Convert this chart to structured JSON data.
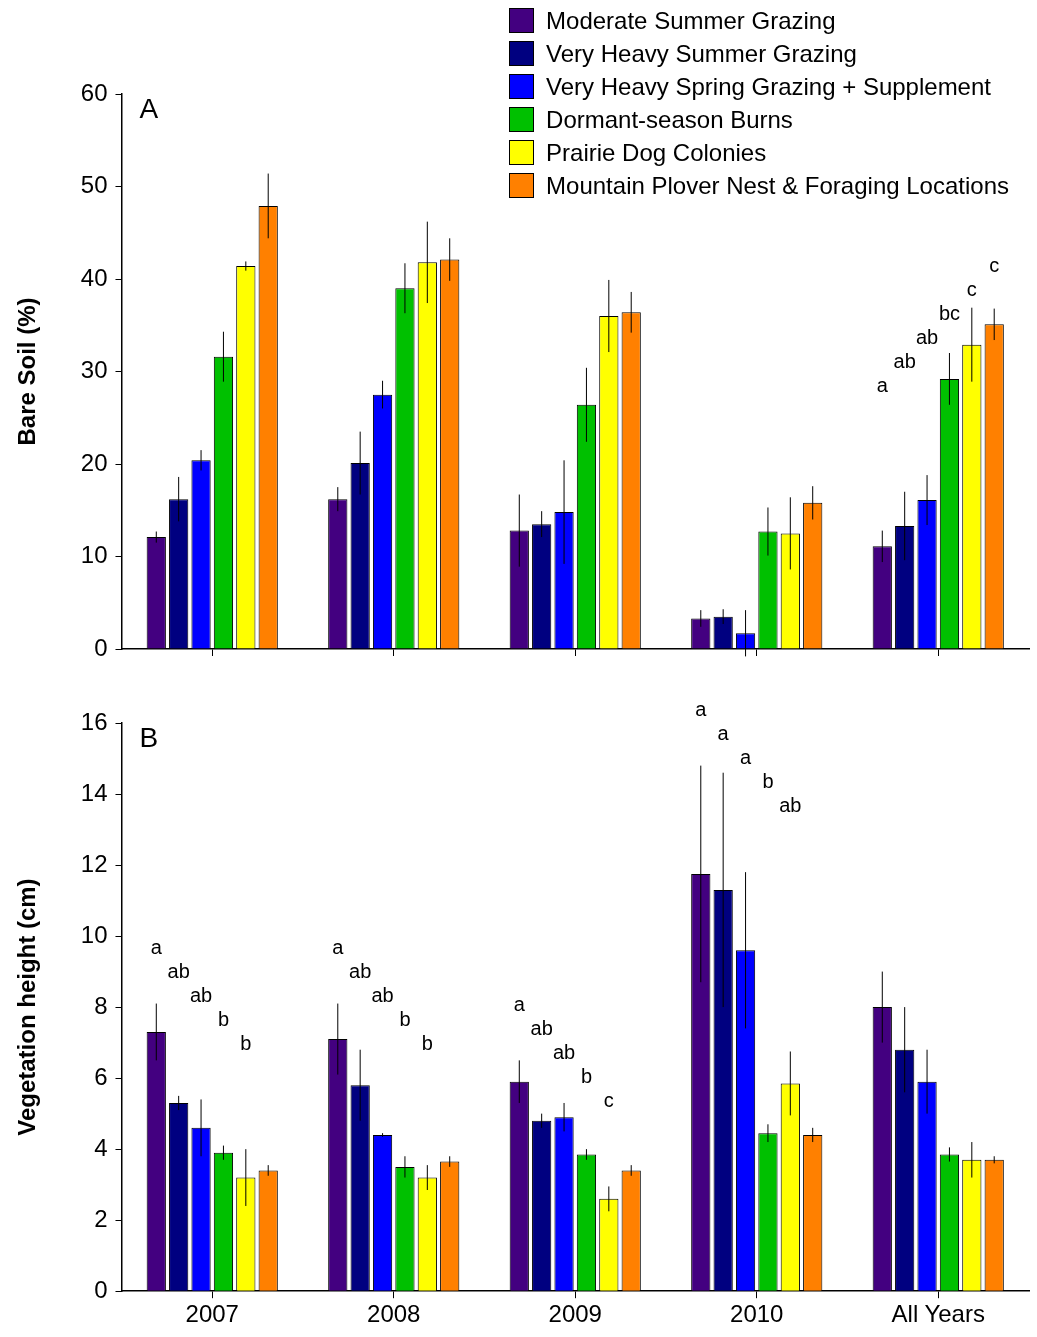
{
  "chart_data": [
    {
      "type": "bar",
      "title": "A",
      "ylabel": "Bare Soil (%)",
      "categories": [
        null,
        null,
        null,
        null,
        null
      ],
      "legend": "top right",
      "tick_labels": "y",
      "ylim": [
        0,
        60
      ],
      "yticks": [
        0,
        10,
        20,
        30,
        40,
        50,
        60
      ],
      "series": [
        {
          "name": "Moderate Summer Grazing",
          "color": "#430080",
          "values": [
            12.1,
            16.2,
            12.8,
            3.3,
            11.1
          ],
          "errors": [
            0.6,
            1.3,
            3.9,
            0.9,
            1.7
          ]
        },
        {
          "name": "Very Heavy Summer Grazing",
          "color": "#000080",
          "values": [
            16.2,
            20.1,
            13.5,
            3.5,
            13.3
          ],
          "errors": [
            2.4,
            3.4,
            1.4,
            0.8,
            3.7
          ]
        },
        {
          "name": "Very Heavy Spring Grazing + Supplement",
          "color": "#0000ff",
          "values": [
            20.4,
            27.5,
            14.8,
            1.7,
            16.1
          ],
          "errors": [
            1.1,
            1.5,
            5.6,
            2.5,
            2.7
          ]
        },
        {
          "name": "Dormant-season Burns",
          "color": "#00c000",
          "values": [
            31.6,
            39.0,
            26.4,
            12.7,
            29.2
          ],
          "errors": [
            2.7,
            2.7,
            4.0,
            2.6,
            2.8
          ]
        },
        {
          "name": "Prairie Dog Colonies",
          "color": "#ffff00",
          "values": [
            41.4,
            41.8,
            36.0,
            12.5,
            32.9
          ],
          "errors": [
            0.5,
            4.4,
            3.9,
            3.9,
            4.0
          ]
        },
        {
          "name": "Mountain Plover Nest & Foraging Locations",
          "color": "#ff8000",
          "values": [
            47.9,
            42.1,
            36.4,
            15.8,
            35.1
          ],
          "errors": [
            3.5,
            2.3,
            2.2,
            1.8,
            1.7
          ]
        }
      ],
      "annotations": [
        "a",
        "ab",
        "ab",
        "bc",
        "c",
        "c"
      ]
    },
    {
      "type": "bar",
      "title": "B",
      "ylabel": "Vegetation height (cm)",
      "categories": [
        "2007",
        "2008",
        "2009",
        "2010",
        "All Years"
      ],
      "ylim": [
        0,
        16
      ],
      "yticks": [
        0,
        2,
        4,
        6,
        8,
        10,
        12,
        14,
        16
      ],
      "series": [
        {
          "color": "#430080",
          "values": [
            7.3,
            7.1,
            5.9,
            11.75,
            8.0
          ],
          "errors": [
            0.8,
            1.0,
            0.6,
            3.05,
            1.0
          ]
        },
        {
          "color": "#000080",
          "values": [
            5.3,
            5.8,
            4.8,
            11.3,
            6.8
          ],
          "errors": [
            0.2,
            1.0,
            0.2,
            3.3,
            1.2
          ]
        },
        {
          "color": "#0000ff",
          "values": [
            4.6,
            4.4,
            4.9,
            9.6,
            5.9
          ],
          "errors": [
            0.8,
            0.05,
            0.4,
            2.2,
            0.9
          ]
        },
        {
          "color": "#00c000",
          "values": [
            3.9,
            3.5,
            3.85,
            4.45,
            3.85
          ],
          "errors": [
            0.2,
            0.3,
            0.15,
            0.25,
            0.2
          ]
        },
        {
          "color": "#ffff00",
          "values": [
            3.2,
            3.2,
            2.6,
            5.85,
            3.7
          ],
          "errors": [
            0.8,
            0.35,
            0.35,
            0.9,
            0.5
          ]
        },
        {
          "color": "#ff8000",
          "values": [
            3.4,
            3.65,
            3.4,
            4.4,
            3.7
          ],
          "errors": [
            0.15,
            0.15,
            0.15,
            0.2,
            0.1
          ]
        }
      ],
      "annotations": [
        "a",
        "ab",
        "ab",
        "b",
        "b",
        "a",
        "ab",
        "ab",
        "b",
        "b",
        "a",
        "ab",
        "ab",
        "b",
        "c",
        "a",
        "a",
        "a",
        "b",
        "ab"
      ]
    }
  ]
}
